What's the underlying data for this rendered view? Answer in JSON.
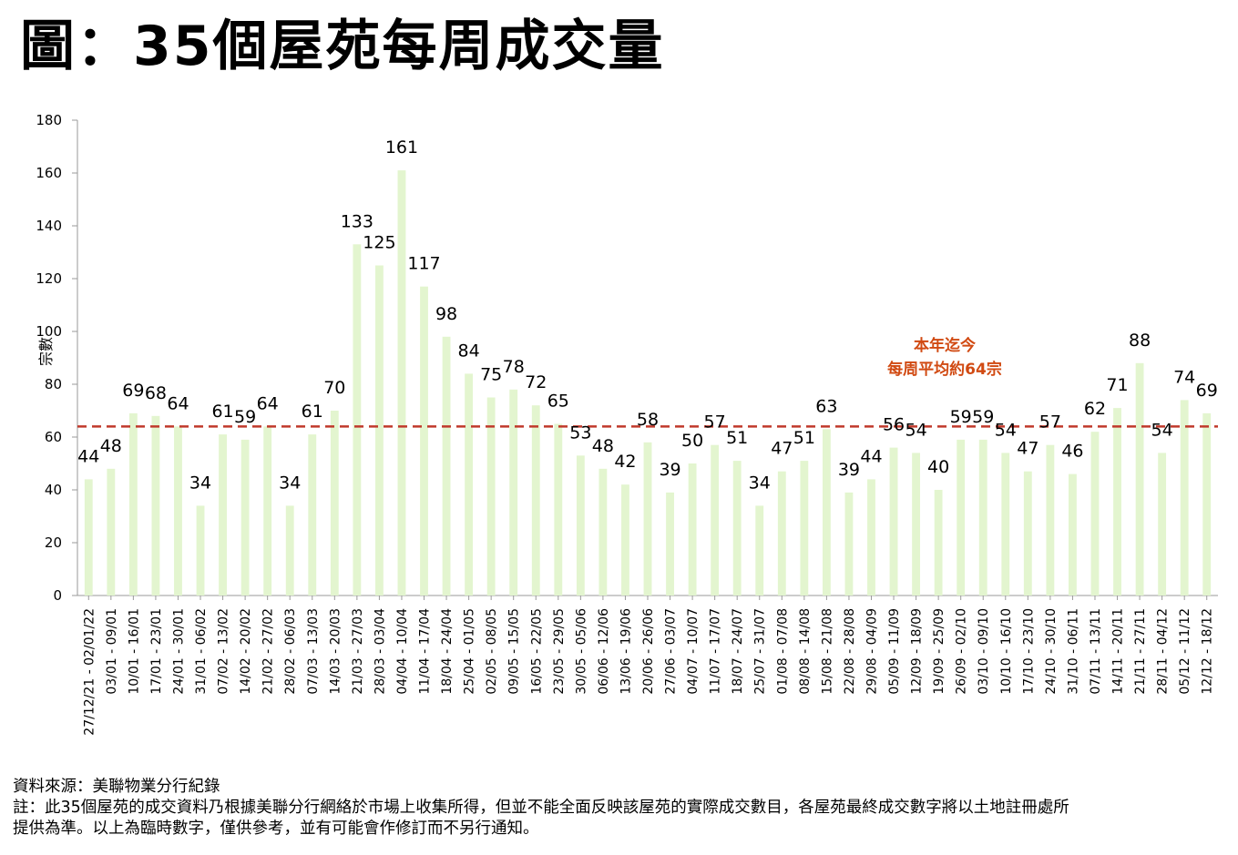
{
  "title": "圖：35個屋苑每周成交量",
  "chart_data": {
    "type": "bar",
    "title": "圖：35個屋苑每周成交量",
    "ylabel": "宗數",
    "xlabel": "",
    "ylim": [
      0,
      180
    ],
    "yticks": [
      0,
      20,
      40,
      60,
      80,
      100,
      120,
      140,
      160,
      180
    ],
    "grid": false,
    "bar_color": "#e3f5cf",
    "categories": [
      "27/12/21 - 02/01/22",
      "03/01 - 09/01",
      "10/01 - 16/01",
      "17/01 - 23/01",
      "24/01 - 30/01",
      "31/01 - 06/02",
      "07/02 - 13/02",
      "14/02 - 20/02",
      "21/02 - 27/02",
      "28/02 - 06/03",
      "07/03 - 13/03",
      "14/03 - 20/03",
      "21/03 - 27/03",
      "28/03 - 03/04",
      "04/04 - 10/04",
      "11/04 - 17/04",
      "18/04 - 24/04",
      "25/04 - 01/05",
      "02/05 - 08/05",
      "09/05 - 15/05",
      "16/05 - 22/05",
      "23/05 - 29/05",
      "30/05 - 05/06",
      "06/06 - 12/06",
      "13/06 - 19/06",
      "20/06 - 26/06",
      "27/06 - 03/07",
      "04/07 - 10/07",
      "11/07 - 17/07",
      "18/07 - 24/07",
      "25/07 - 31/07",
      "01/08 - 07/08",
      "08/08 - 14/08",
      "15/08 - 21/08",
      "22/08 - 28/08",
      "29/08 - 04/09",
      "05/09 - 11/09",
      "12/09 - 18/09",
      "19/09 - 25/09",
      "26/09 - 02/10",
      "03/10 - 09/10",
      "10/10 - 16/10",
      "17/10 - 23/10",
      "24/10 - 30/10",
      "31/10 - 06/11",
      "07/11 - 13/11",
      "14/11 - 20/11",
      "21/11 - 27/11",
      "28/11 - 04/12",
      "05/12 - 11/12",
      "12/12 - 18/12"
    ],
    "values": [
      44,
      48,
      69,
      68,
      64,
      34,
      61,
      59,
      64,
      34,
      61,
      70,
      133,
      125,
      161,
      117,
      98,
      84,
      75,
      78,
      72,
      65,
      53,
      48,
      42,
      58,
      39,
      50,
      57,
      51,
      34,
      47,
      51,
      63,
      39,
      44,
      56,
      54,
      40,
      59,
      59,
      54,
      47,
      57,
      46,
      62,
      71,
      88,
      54,
      74,
      69
    ],
    "reference_line": {
      "value": 64,
      "style": "dashed",
      "color": "#c0392b",
      "annotation": [
        "本年迄今",
        "每周平均約64宗"
      ],
      "annotation_color": "#d14a12"
    }
  },
  "footer": {
    "source": "資料來源：美聯物業分行紀錄",
    "note_line1": "註：此35個屋苑的成交資料乃根據美聯分行網絡於市場上收集所得，但並不能全面反映該屋苑的實際成交數目，各屋苑最終成交數字將以土地註冊處所",
    "note_line2": "提供為準。以上為臨時數字，僅供參考，並有可能會作修訂而不另行通知。"
  }
}
